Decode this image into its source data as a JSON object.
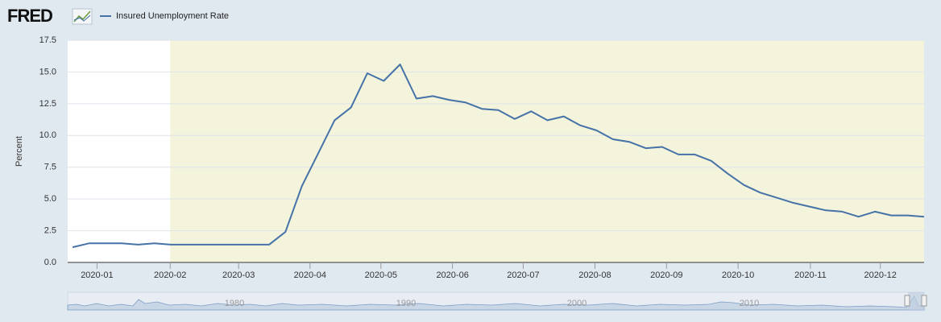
{
  "logo": "FRED",
  "navigator": {
    "labels": [
      "1980",
      "1990",
      "2000",
      "2010"
    ]
  },
  "chart_data": {
    "type": "line",
    "y_label": "Percent",
    "series": [
      {
        "name": "Insured Unemployment Rate",
        "color": "#4572a7",
        "values": [
          1.2,
          1.5,
          1.5,
          1.5,
          1.4,
          1.5,
          1.4,
          1.4,
          1.4,
          1.4,
          1.4,
          1.4,
          1.4,
          2.4,
          6.0,
          8.6,
          11.2,
          12.2,
          14.9,
          14.3,
          15.6,
          12.9,
          13.1,
          12.8,
          12.6,
          12.1,
          12.0,
          11.3,
          11.9,
          11.2,
          11.5,
          10.8,
          10.4,
          9.7,
          9.5,
          9.0,
          9.1,
          8.5,
          8.5,
          8.0,
          7.0,
          6.1,
          5.5,
          5.1,
          4.7,
          4.4,
          4.1,
          4.0,
          3.6,
          4.0,
          3.7,
          3.7,
          3.6
        ]
      }
    ],
    "xlim": [
      -0.3,
      52
    ],
    "xticks": [
      {
        "value": 1.49,
        "label": "2020-01"
      },
      {
        "value": 5.96,
        "label": "2020-02"
      },
      {
        "value": 10.14,
        "label": "2020-03"
      },
      {
        "value": 14.5,
        "label": "2020-04"
      },
      {
        "value": 18.83,
        "label": "2020-05"
      },
      {
        "value": 23.2,
        "label": "2020-06"
      },
      {
        "value": 27.52,
        "label": "2020-07"
      },
      {
        "value": 31.9,
        "label": "2020-08"
      },
      {
        "value": 36.27,
        "label": "2020-09"
      },
      {
        "value": 40.64,
        "label": "2020-10"
      },
      {
        "value": 45.06,
        "label": "2020-11"
      },
      {
        "value": 49.33,
        "label": "2020-12"
      }
    ],
    "ylim": [
      0,
      17.5
    ],
    "yticks": [
      {
        "value": 0,
        "label": "0.0"
      },
      2.5,
      {
        "value": 5,
        "label": "5.0"
      },
      7.5,
      {
        "value": 10,
        "label": "10.0"
      },
      12.5,
      {
        "value": 15,
        "label": "15.0"
      },
      17.5
    ],
    "grid": true,
    "recession": {
      "range": [
        5.96,
        52
      ],
      "color": "#f4f4dc"
    }
  }
}
